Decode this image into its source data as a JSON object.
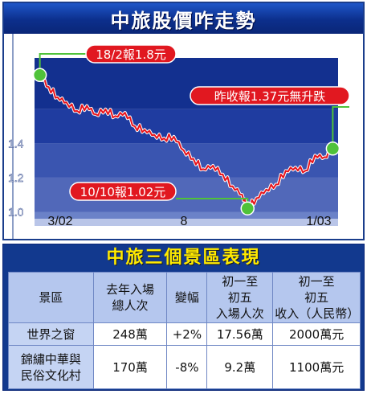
{
  "chart_title": "中旅股價咋走勢",
  "chart_data": {
    "type": "line",
    "title": "中旅股價咋走勢",
    "x_ticks": [
      "3/02",
      "8",
      "1/03"
    ],
    "y_ticks": [
      1.0,
      1.2,
      1.4
    ],
    "ylim": [
      0.96,
      1.9
    ],
    "grid": "horizontal bands",
    "series": [
      {
        "x": [
          "2002-02-18",
          "2002-02-28",
          "2002-03-10",
          "2002-03-20",
          "2002-04-01",
          "2002-04-12",
          "2002-04-22",
          "2002-05-03",
          "2002-05-14",
          "2002-05-25",
          "2002-06-05",
          "2002-06-16",
          "2002-06-27",
          "2002-07-08",
          "2002-07-19",
          "2002-07-30",
          "2002-08-10",
          "2002-08-21",
          "2002-09-01",
          "2002-09-12",
          "2002-09-23",
          "2002-10-04",
          "2002-10-10",
          "2002-10-20",
          "2002-10-31",
          "2002-11-11",
          "2002-11-22",
          "2002-12-03",
          "2002-12-14",
          "2002-12-25",
          "2003-01-05",
          "2003-01-14"
        ],
        "y": [
          1.8,
          1.73,
          1.67,
          1.64,
          1.59,
          1.62,
          1.57,
          1.6,
          1.56,
          1.58,
          1.5,
          1.48,
          1.45,
          1.43,
          1.44,
          1.36,
          1.31,
          1.25,
          1.27,
          1.22,
          1.15,
          1.1,
          1.02,
          1.08,
          1.13,
          1.16,
          1.24,
          1.26,
          1.24,
          1.33,
          1.32,
          1.37
        ]
      }
    ],
    "annotations": [
      {
        "text": "18/2報1.8元",
        "x": "2002-02-18",
        "y": 1.8
      },
      {
        "text": "昨收報1.37元無升跌",
        "x": "2003-01-14",
        "y": 1.37
      },
      {
        "text": "10/10報1.02元",
        "x": "2002-10-10",
        "y": 1.02
      }
    ]
  },
  "colors": {
    "header_bg": "#0c2f8c",
    "plot_band_dark": "#13308f",
    "plot_band_mid": "#3a55b0",
    "plot_band_light": "#6b82c8",
    "line": "#e8141c",
    "marker": "#4fc23a",
    "table_header_bg": "#b5c7ee",
    "table_title": "#ffea00"
  },
  "table": {
    "title": "中旅三個景區表現",
    "headers": [
      "景區",
      "去年入場\n總人次",
      "變幅",
      "初一至\n初五\n入場人次",
      "初一至\n初五\n收入（人民幣）"
    ],
    "rows": [
      [
        "世界之窗",
        "248萬",
        "+2%",
        "17.56萬",
        "2000萬元"
      ],
      [
        "錦繡中華與\n民俗文化村",
        "170萬",
        "-8%",
        "9.2萬",
        "1100萬元"
      ]
    ]
  }
}
